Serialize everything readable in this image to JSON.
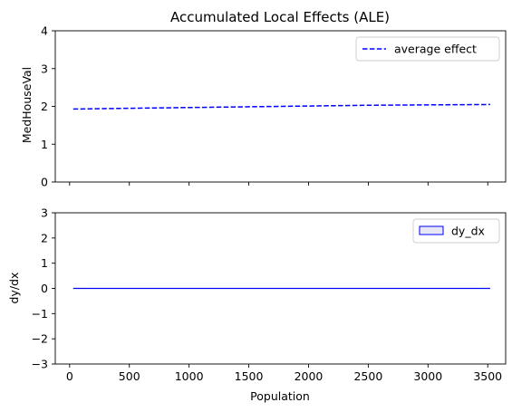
{
  "chart_data": [
    {
      "type": "line",
      "title": "Accumulated Local Effects (ALE)",
      "xlabel": "",
      "ylabel": "MedHouseVal",
      "xlim": [
        -120,
        3650
      ],
      "ylim": [
        0,
        4
      ],
      "xticks": [
        0,
        500,
        1000,
        1500,
        2000,
        2500,
        3000,
        3500
      ],
      "yticks": [
        0,
        1,
        2,
        3,
        4
      ],
      "show_xtick_labels": false,
      "grid": false,
      "legend": "top-right",
      "series": [
        {
          "name": "average effect",
          "style": "dashed",
          "color": "#0000ff",
          "x": [
            30,
            500,
            1000,
            1500,
            2000,
            2500,
            3000,
            3520
          ],
          "y": [
            1.93,
            1.95,
            1.97,
            1.99,
            2.01,
            2.03,
            2.04,
            2.05
          ]
        }
      ]
    },
    {
      "type": "area",
      "title": "",
      "xlabel": "Population",
      "ylabel": "dy/dx",
      "xlim": [
        -120,
        3650
      ],
      "ylim": [
        -3,
        3
      ],
      "xticks": [
        0,
        500,
        1000,
        1500,
        2000,
        2500,
        3000,
        3500
      ],
      "xtick_labels": [
        "0",
        "500",
        "1000",
        "1500",
        "2000",
        "2500",
        "3000",
        "3500"
      ],
      "yticks": [
        -3,
        -2,
        -1,
        0,
        1,
        2,
        3
      ],
      "ytick_labels": [
        "−3",
        "−2",
        "−1",
        "0",
        "1",
        "2",
        "3"
      ],
      "show_xtick_labels": true,
      "grid": false,
      "legend": "top-right",
      "series": [
        {
          "name": "dy_dx",
          "style": "filled",
          "color": "#0000ff",
          "fill": "#e6e6f5",
          "x": [
            30,
            3520
          ],
          "y": [
            0,
            0
          ]
        }
      ]
    }
  ]
}
